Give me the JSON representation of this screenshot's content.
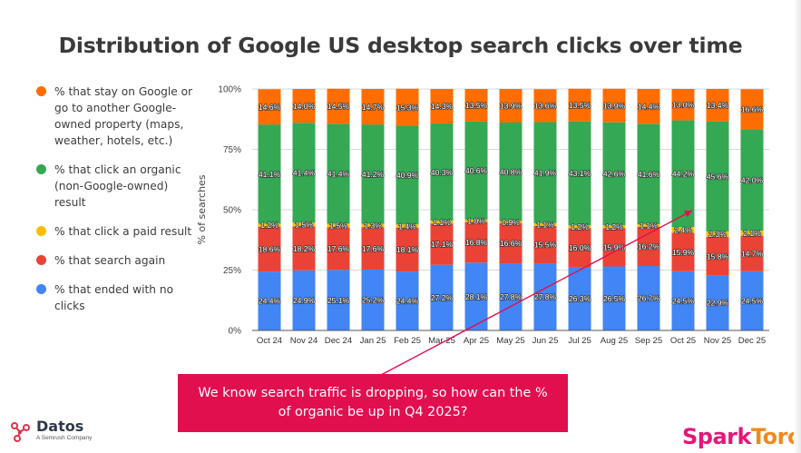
{
  "title": "Distribution of Google US desktop search clicks over time",
  "legend": [
    {
      "label": "% that stay on Google or go to another Google-owned property (maps, weather, hotels, etc.)",
      "color": "#ff6d01"
    },
    {
      "label": "% that click an organic (non-Google-owned) result",
      "color": "#34a853"
    },
    {
      "label": "% that click a paid result",
      "color": "#fbbc04"
    },
    {
      "label": "% that search again",
      "color": "#ea4335"
    },
    {
      "label": "% that ended with no clicks",
      "color": "#4285f4"
    }
  ],
  "chart_data": {
    "type": "bar",
    "stacked": true,
    "title": "Distribution of Google US desktop search clicks over time",
    "xlabel": "",
    "ylabel": "% of searches",
    "ylim": [
      0,
      100
    ],
    "yticks": [
      "0%",
      "25%",
      "50%",
      "75%",
      "100%"
    ],
    "grid": true,
    "categories": [
      "Oct 24",
      "Nov 24",
      "Dec 24",
      "Jan 25",
      "Feb 25",
      "Mar 25",
      "Apr 25",
      "May 25",
      "Jun 25",
      "Jul 25",
      "Aug 25",
      "Sep 25",
      "Oct 25",
      "Nov 25",
      "Dec 25"
    ],
    "series": [
      {
        "name": "% that ended with no clicks",
        "color": "#4285f4",
        "values": [
          24.4,
          24.9,
          25.1,
          25.2,
          24.4,
          27.2,
          28.1,
          27.8,
          27.8,
          26.3,
          26.5,
          26.7,
          24.5,
          22.9,
          24.5
        ]
      },
      {
        "name": "% that search again",
        "color": "#ea4335",
        "values": [
          18.6,
          18.2,
          17.6,
          17.6,
          18.1,
          17.1,
          16.8,
          16.6,
          15.5,
          16.0,
          15.9,
          16.2,
          15.9,
          15.8,
          14.7
        ]
      },
      {
        "name": "% that click a paid result",
        "color": "#fbbc04",
        "values": [
          1.2,
          1.5,
          1.5,
          1.3,
          1.4,
          1.1,
          1.0,
          0.9,
          1.1,
          1.2,
          1.2,
          1.1,
          2.4,
          2.3,
          2.1
        ]
      },
      {
        "name": "% that click an organic (non-Google-owned) result",
        "color": "#34a853",
        "values": [
          41.1,
          41.4,
          41.4,
          41.2,
          40.9,
          40.3,
          40.6,
          40.8,
          41.9,
          43.1,
          42.6,
          41.6,
          44.2,
          45.6,
          42.0
        ]
      },
      {
        "name": "% that stay on Google or go to another Google-owned property (maps, weather, hotels, etc.)",
        "color": "#ff6d01",
        "values": [
          14.6,
          14.0,
          14.5,
          14.7,
          15.3,
          14.3,
          13.5,
          13.9,
          13.6,
          13.5,
          13.9,
          14.4,
          13.0,
          13.4,
          16.6
        ]
      }
    ]
  },
  "callout": {
    "text": "We know search traffic is dropping, so how can the % of organic be up in Q4 2025?",
    "color": "#e20f4f",
    "arrow_target": "Nov 25"
  },
  "branding": {
    "datos_name": "Datos",
    "datos_sub": "A Semrush Company",
    "sparktoro_part1": "Spark",
    "sparktoro_part2": "Toro"
  }
}
